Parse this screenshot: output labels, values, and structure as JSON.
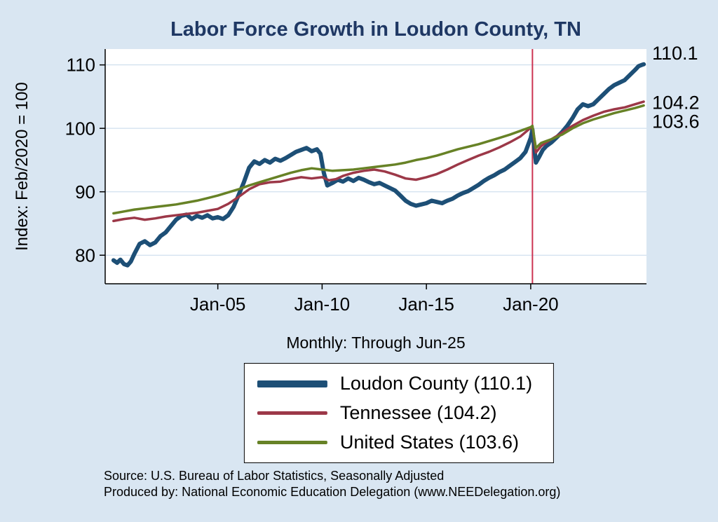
{
  "page": {
    "title": "Labor Force Growth in Loudon  County, TN",
    "subtitle": "Monthly: Through Jun-25",
    "y_axis_title": "Index: Feb/2020 = 100",
    "footer_line1": "Source: U.S. Bureau of Labor Statistics, Seasonally Adjusted",
    "footer_line2": "Produced by: National Economic Education Delegation (www.NEEDelegation.org)",
    "colors": {
      "background": "#d9e6f2",
      "title": "#1f3864",
      "grid": "#c5d8ea",
      "axis": "#000000"
    }
  },
  "chart_data": {
    "type": "line",
    "title": "Labor Force Growth in Loudon  County, TN",
    "subtitle": "Monthly: Through Jun-25",
    "xlabel": "",
    "ylabel": "Index: Feb/2020 = 100",
    "xlim": [
      1999.6,
      2025.55
    ],
    "ylim": [
      75.5,
      112.5
    ],
    "grid": "horizontal",
    "legend_position": "below-center",
    "yticks": [
      80,
      90,
      100,
      110
    ],
    "xticks": [
      {
        "v": 2005.0,
        "label": "Jan-05"
      },
      {
        "v": 2010.0,
        "label": "Jan-10"
      },
      {
        "v": 2015.0,
        "label": "Jan-15"
      },
      {
        "v": 2020.0,
        "label": "Jan-20"
      }
    ],
    "ref_line": {
      "x": 2020.083,
      "color": "#cc3352",
      "meaning": "Feb-2020"
    },
    "annotations": [
      {
        "label": "110.1",
        "y": 111.9
      },
      {
        "label": "104.2",
        "y": 104.1
      },
      {
        "label": "103.6",
        "y": 101.1
      }
    ],
    "series": [
      {
        "id": "loudon-county",
        "name": "Loudon  County",
        "last_value": 110.1,
        "legend_label": "Loudon  County (110.1)",
        "color": "#1d4f76",
        "width": 6,
        "swatch_height": 10,
        "points": [
          [
            2000.0,
            79.2
          ],
          [
            2000.17,
            78.8
          ],
          [
            2000.33,
            79.3
          ],
          [
            2000.5,
            78.6
          ],
          [
            2000.67,
            78.4
          ],
          [
            2000.83,
            79.0
          ],
          [
            2001.0,
            80.2
          ],
          [
            2001.25,
            81.8
          ],
          [
            2001.5,
            82.2
          ],
          [
            2001.75,
            81.6
          ],
          [
            2002.0,
            82.0
          ],
          [
            2002.25,
            83.0
          ],
          [
            2002.5,
            83.6
          ],
          [
            2002.75,
            84.6
          ],
          [
            2003.0,
            85.6
          ],
          [
            2003.25,
            86.2
          ],
          [
            2003.5,
            86.4
          ],
          [
            2003.75,
            85.7
          ],
          [
            2004.0,
            86.2
          ],
          [
            2004.25,
            85.9
          ],
          [
            2004.5,
            86.3
          ],
          [
            2004.75,
            85.8
          ],
          [
            2005.0,
            86.0
          ],
          [
            2005.25,
            85.7
          ],
          [
            2005.5,
            86.3
          ],
          [
            2005.75,
            87.6
          ],
          [
            2006.0,
            89.5
          ],
          [
            2006.25,
            91.5
          ],
          [
            2006.5,
            93.8
          ],
          [
            2006.75,
            94.8
          ],
          [
            2007.0,
            94.4
          ],
          [
            2007.25,
            95.0
          ],
          [
            2007.5,
            94.6
          ],
          [
            2007.75,
            95.2
          ],
          [
            2008.0,
            94.9
          ],
          [
            2008.25,
            95.3
          ],
          [
            2008.5,
            95.8
          ],
          [
            2008.75,
            96.3
          ],
          [
            2009.0,
            96.6
          ],
          [
            2009.25,
            96.9
          ],
          [
            2009.5,
            96.4
          ],
          [
            2009.75,
            96.7
          ],
          [
            2009.92,
            96.0
          ],
          [
            2010.08,
            93.0
          ],
          [
            2010.25,
            91.0
          ],
          [
            2010.5,
            91.4
          ],
          [
            2010.75,
            91.9
          ],
          [
            2011.0,
            91.6
          ],
          [
            2011.25,
            92.1
          ],
          [
            2011.5,
            91.7
          ],
          [
            2011.75,
            92.2
          ],
          [
            2012.0,
            91.9
          ],
          [
            2012.25,
            91.5
          ],
          [
            2012.5,
            91.2
          ],
          [
            2012.75,
            91.4
          ],
          [
            2013.0,
            91.0
          ],
          [
            2013.25,
            90.6
          ],
          [
            2013.5,
            90.2
          ],
          [
            2013.75,
            89.4
          ],
          [
            2014.0,
            88.6
          ],
          [
            2014.25,
            88.1
          ],
          [
            2014.5,
            87.8
          ],
          [
            2014.75,
            88.0
          ],
          [
            2015.0,
            88.2
          ],
          [
            2015.25,
            88.6
          ],
          [
            2015.5,
            88.4
          ],
          [
            2015.75,
            88.2
          ],
          [
            2016.0,
            88.6
          ],
          [
            2016.25,
            88.9
          ],
          [
            2016.5,
            89.4
          ],
          [
            2016.75,
            89.8
          ],
          [
            2017.0,
            90.1
          ],
          [
            2017.25,
            90.6
          ],
          [
            2017.5,
            91.1
          ],
          [
            2017.75,
            91.7
          ],
          [
            2018.0,
            92.2
          ],
          [
            2018.25,
            92.6
          ],
          [
            2018.5,
            93.1
          ],
          [
            2018.75,
            93.5
          ],
          [
            2019.0,
            94.1
          ],
          [
            2019.25,
            94.7
          ],
          [
            2019.5,
            95.3
          ],
          [
            2019.75,
            96.3
          ],
          [
            2020.0,
            98.5
          ],
          [
            2020.08,
            99.8
          ],
          [
            2020.25,
            94.6
          ],
          [
            2020.42,
            95.6
          ],
          [
            2020.58,
            96.6
          ],
          [
            2020.75,
            97.2
          ],
          [
            2021.0,
            97.8
          ],
          [
            2021.25,
            98.6
          ],
          [
            2021.5,
            99.4
          ],
          [
            2021.75,
            100.4
          ],
          [
            2022.0,
            101.6
          ],
          [
            2022.25,
            103.0
          ],
          [
            2022.5,
            103.8
          ],
          [
            2022.75,
            103.5
          ],
          [
            2023.0,
            103.8
          ],
          [
            2023.25,
            104.6
          ],
          [
            2023.5,
            105.4
          ],
          [
            2023.75,
            106.2
          ],
          [
            2024.0,
            106.8
          ],
          [
            2024.25,
            107.2
          ],
          [
            2024.5,
            107.6
          ],
          [
            2024.75,
            108.4
          ],
          [
            2025.0,
            109.2
          ],
          [
            2025.17,
            109.8
          ],
          [
            2025.33,
            110.0
          ],
          [
            2025.42,
            110.1
          ]
        ]
      },
      {
        "id": "tennessee",
        "name": "Tennessee",
        "last_value": 104.2,
        "legend_label": "Tennessee (104.2)",
        "color": "#9c3848",
        "width": 3.5,
        "swatch_height": 5,
        "points": [
          [
            2000.0,
            85.4
          ],
          [
            2000.5,
            85.7
          ],
          [
            2001.0,
            85.9
          ],
          [
            2001.5,
            85.6
          ],
          [
            2002.0,
            85.8
          ],
          [
            2002.5,
            86.1
          ],
          [
            2003.0,
            86.3
          ],
          [
            2003.5,
            86.5
          ],
          [
            2004.0,
            86.7
          ],
          [
            2004.5,
            87.0
          ],
          [
            2005.0,
            87.3
          ],
          [
            2005.5,
            88.1
          ],
          [
            2006.0,
            89.2
          ],
          [
            2006.5,
            90.4
          ],
          [
            2007.0,
            91.2
          ],
          [
            2007.5,
            91.5
          ],
          [
            2008.0,
            91.6
          ],
          [
            2008.5,
            92.0
          ],
          [
            2009.0,
            92.3
          ],
          [
            2009.5,
            92.1
          ],
          [
            2010.0,
            92.3
          ],
          [
            2010.33,
            91.8
          ],
          [
            2010.67,
            92.0
          ],
          [
            2011.0,
            92.5
          ],
          [
            2011.5,
            93.0
          ],
          [
            2012.0,
            93.3
          ],
          [
            2012.5,
            93.5
          ],
          [
            2013.0,
            93.2
          ],
          [
            2013.5,
            92.7
          ],
          [
            2014.0,
            92.1
          ],
          [
            2014.5,
            91.9
          ],
          [
            2015.0,
            92.3
          ],
          [
            2015.5,
            92.8
          ],
          [
            2016.0,
            93.5
          ],
          [
            2016.5,
            94.3
          ],
          [
            2017.0,
            95.0
          ],
          [
            2017.5,
            95.7
          ],
          [
            2018.0,
            96.3
          ],
          [
            2018.5,
            97.0
          ],
          [
            2019.0,
            97.8
          ],
          [
            2019.5,
            98.7
          ],
          [
            2020.0,
            100.1
          ],
          [
            2020.08,
            100.4
          ],
          [
            2020.25,
            96.2
          ],
          [
            2020.5,
            97.2
          ],
          [
            2020.75,
            97.8
          ],
          [
            2021.0,
            98.3
          ],
          [
            2021.5,
            99.3
          ],
          [
            2022.0,
            100.4
          ],
          [
            2022.5,
            101.3
          ],
          [
            2023.0,
            102.0
          ],
          [
            2023.5,
            102.6
          ],
          [
            2024.0,
            103.0
          ],
          [
            2024.5,
            103.3
          ],
          [
            2025.0,
            103.8
          ],
          [
            2025.42,
            104.2
          ]
        ]
      },
      {
        "id": "united-states",
        "name": "United States",
        "last_value": 103.6,
        "legend_label": "United States (103.6)",
        "color": "#678226",
        "width": 3.5,
        "swatch_height": 5,
        "points": [
          [
            2000.0,
            86.6
          ],
          [
            2000.5,
            86.9
          ],
          [
            2001.0,
            87.2
          ],
          [
            2001.5,
            87.4
          ],
          [
            2002.0,
            87.6
          ],
          [
            2002.5,
            87.8
          ],
          [
            2003.0,
            88.0
          ],
          [
            2003.5,
            88.3
          ],
          [
            2004.0,
            88.6
          ],
          [
            2004.5,
            89.0
          ],
          [
            2005.0,
            89.4
          ],
          [
            2005.5,
            89.9
          ],
          [
            2006.0,
            90.4
          ],
          [
            2006.5,
            91.0
          ],
          [
            2007.0,
            91.5
          ],
          [
            2007.5,
            92.0
          ],
          [
            2008.0,
            92.5
          ],
          [
            2008.5,
            93.0
          ],
          [
            2009.0,
            93.4
          ],
          [
            2009.5,
            93.7
          ],
          [
            2010.0,
            93.5
          ],
          [
            2010.5,
            93.3
          ],
          [
            2011.0,
            93.4
          ],
          [
            2011.5,
            93.5
          ],
          [
            2012.0,
            93.7
          ],
          [
            2012.5,
            93.9
          ],
          [
            2013.0,
            94.1
          ],
          [
            2013.5,
            94.3
          ],
          [
            2014.0,
            94.6
          ],
          [
            2014.5,
            95.0
          ],
          [
            2015.0,
            95.3
          ],
          [
            2015.5,
            95.7
          ],
          [
            2016.0,
            96.2
          ],
          [
            2016.5,
            96.7
          ],
          [
            2017.0,
            97.1
          ],
          [
            2017.5,
            97.5
          ],
          [
            2018.0,
            98.0
          ],
          [
            2018.5,
            98.5
          ],
          [
            2019.0,
            99.0
          ],
          [
            2019.5,
            99.6
          ],
          [
            2020.0,
            100.2
          ],
          [
            2020.08,
            100.4
          ],
          [
            2020.25,
            96.9
          ],
          [
            2020.5,
            97.7
          ],
          [
            2020.75,
            98.0
          ],
          [
            2021.0,
            98.3
          ],
          [
            2021.5,
            99.0
          ],
          [
            2022.0,
            100.0
          ],
          [
            2022.5,
            100.8
          ],
          [
            2023.0,
            101.4
          ],
          [
            2023.5,
            101.9
          ],
          [
            2024.0,
            102.4
          ],
          [
            2024.5,
            102.8
          ],
          [
            2025.0,
            103.2
          ],
          [
            2025.42,
            103.6
          ]
        ]
      }
    ]
  }
}
